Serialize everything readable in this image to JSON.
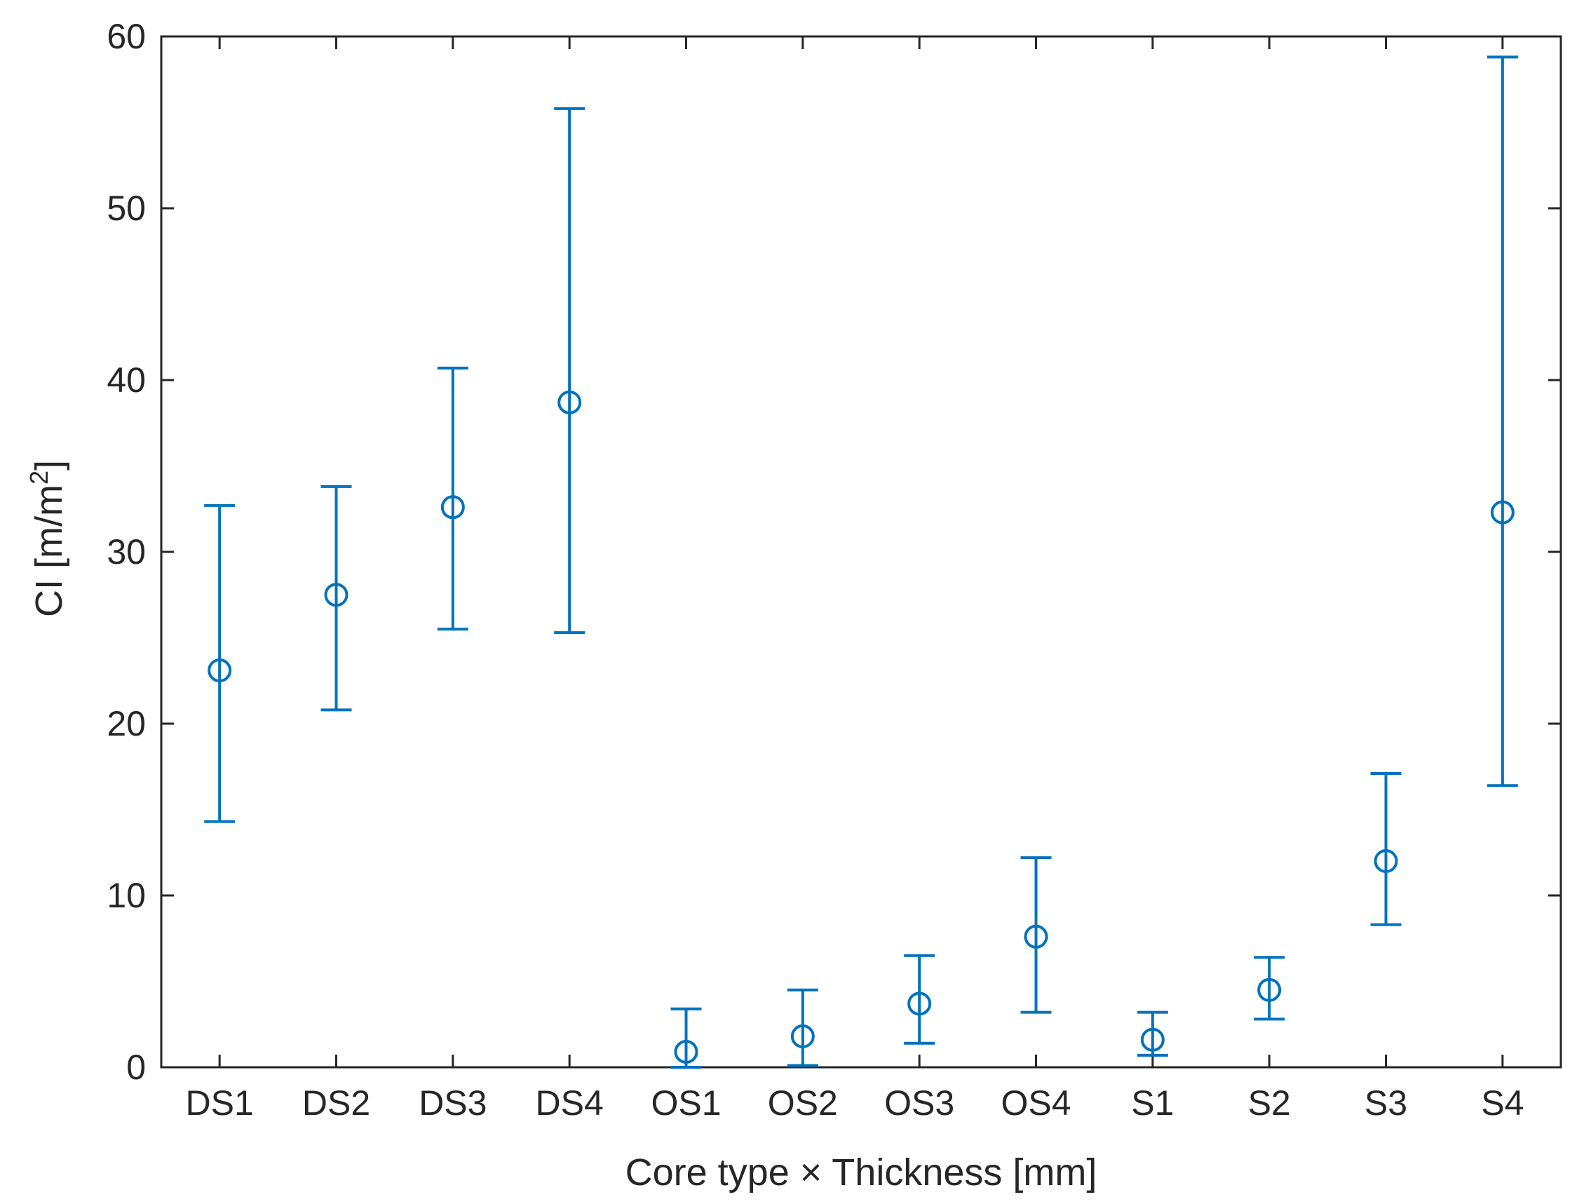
{
  "chart_data": {
    "type": "scatter",
    "subtype": "errorbar",
    "title": "",
    "xlabel": "Core type × Thickness [mm]",
    "ylabel": "CI [m/m²]",
    "ylabel_base": "CI [m/m",
    "ylabel_sup": "2",
    "ylabel_close": "]",
    "categories": [
      "DS1",
      "DS2",
      "DS3",
      "DS4",
      "OS1",
      "OS2",
      "OS3",
      "OS4",
      "S1",
      "S2",
      "S3",
      "S4"
    ],
    "y": [
      23.1,
      27.5,
      32.6,
      38.7,
      0.9,
      1.8,
      3.7,
      7.6,
      1.6,
      4.5,
      12.0,
      32.3
    ],
    "y_lower": [
      14.3,
      20.8,
      25.5,
      25.3,
      0.0,
      0.1,
      1.4,
      3.2,
      0.7,
      2.8,
      8.3,
      16.4
    ],
    "y_upper": [
      32.7,
      33.8,
      40.7,
      55.8,
      3.4,
      4.5,
      6.5,
      12.2,
      3.2,
      6.4,
      17.1,
      58.8
    ],
    "ylim": [
      0,
      60
    ],
    "yticks": [
      0,
      10,
      20,
      30,
      40,
      50,
      60
    ],
    "grid": false,
    "legend": "none",
    "colors": {
      "series": "#0072BD",
      "axis": "#262626"
    }
  }
}
